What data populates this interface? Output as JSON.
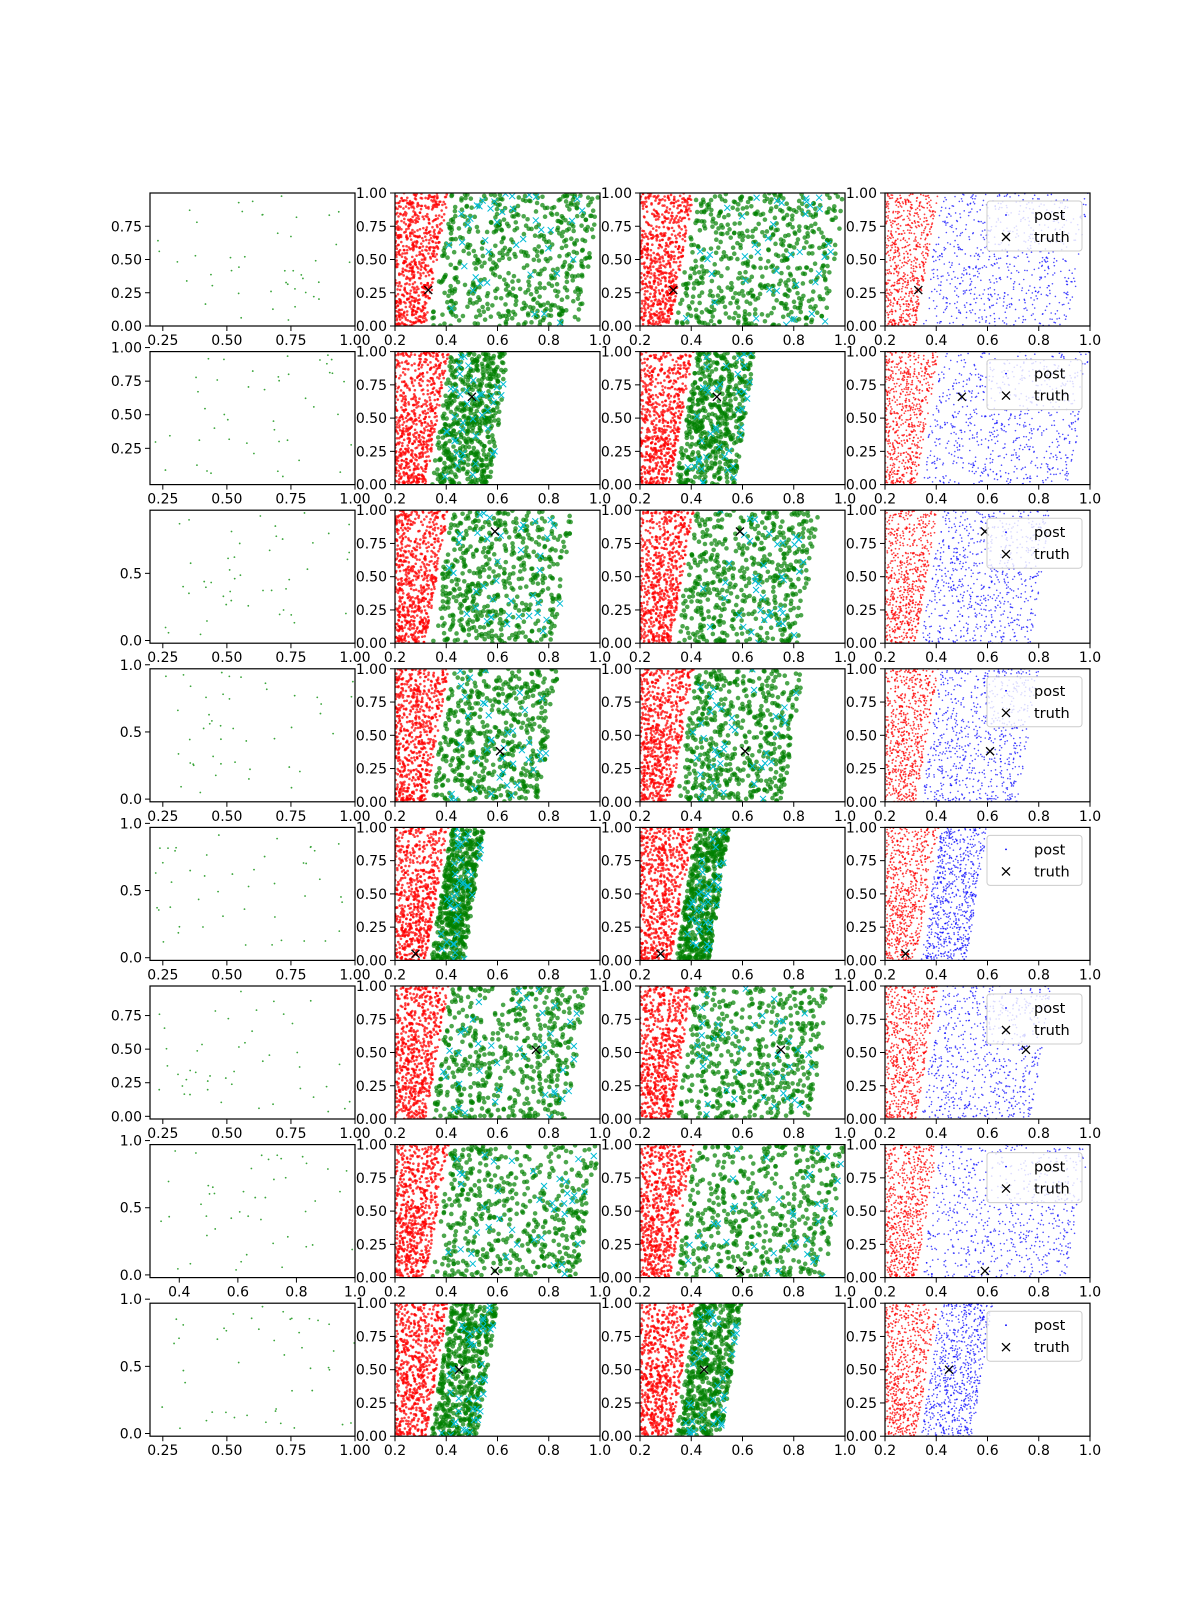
{
  "figure": {
    "rows": 8,
    "cols": 4,
    "colors": {
      "observed": "#3aa53a",
      "red_cloud": "#ff0000",
      "green_cloud": "#008000",
      "cyan_marks": "#00bcd4",
      "blue_posterior": "#0000ff",
      "truth_marker": "#000000"
    },
    "legend": {
      "post_label": "post",
      "truth_label": "truth"
    }
  },
  "chart_data": [
    {
      "type": "scatter",
      "row": 1,
      "panels": 4,
      "truth": [
        0.33,
        0.27
      ],
      "green_region": [
        0.4,
        1.0
      ],
      "blue_region": [
        0.45,
        1.0
      ],
      "col1_xlim": [
        0.2,
        1.0
      ],
      "col1_ylim": [
        0.0,
        1.0
      ],
      "col1_xticks": [
        "0.25",
        "0.50",
        "0.75",
        "1.00"
      ],
      "col1_yticks": [
        "0.00",
        "0.25",
        "0.50",
        "0.75"
      ],
      "xlim": [
        0.2,
        1.0
      ],
      "ylim": [
        0.0,
        1.0
      ],
      "xticks": [
        "0.2",
        "0.4",
        "0.6",
        "0.8",
        "1.0"
      ],
      "yticks": [
        "0.00",
        "0.25",
        "0.50",
        "0.75",
        "1.00"
      ],
      "legend": "upper right"
    },
    {
      "type": "scatter",
      "row": 2,
      "panels": 4,
      "truth": [
        0.5,
        0.66
      ],
      "green_region": [
        0.4,
        0.65
      ],
      "blue_region": [
        0.45,
        1.0
      ],
      "col1_xticks": [
        "0.25",
        "0.50",
        "0.75",
        "1.00"
      ],
      "col1_yticks": [
        "0.25",
        "0.50",
        "0.75",
        "1.00"
      ],
      "xticks": [
        "0.2",
        "0.4",
        "0.6",
        "0.8",
        "1.0"
      ],
      "yticks": [
        "0.00",
        "0.25",
        "0.50",
        "0.75",
        "1.00"
      ],
      "legend": "upper right"
    },
    {
      "type": "scatter",
      "row": 3,
      "panels": 4,
      "truth": [
        0.59,
        0.84
      ],
      "green_region": [
        0.4,
        0.9
      ],
      "blue_region": [
        0.45,
        0.85
      ],
      "col1_xticks": [
        "0.25",
        "0.50",
        "0.75",
        "1.00"
      ],
      "col1_yticks": [
        "0.0",
        "0.5"
      ],
      "xticks": [
        "0.2",
        "0.4",
        "0.6",
        "0.8",
        "1.0"
      ],
      "yticks": [
        "0.00",
        "0.25",
        "0.50",
        "0.75",
        "1.00"
      ],
      "legend": "upper right"
    },
    {
      "type": "scatter",
      "row": 4,
      "panels": 4,
      "truth": [
        0.61,
        0.38
      ],
      "green_region": [
        0.4,
        0.84
      ],
      "blue_region": [
        0.45,
        0.8
      ],
      "col1_xticks": [
        "0.25",
        "0.50",
        "0.75",
        "1.00"
      ],
      "col1_yticks": [
        "0.0",
        "0.5",
        "1.0"
      ],
      "xticks": [
        "0.2",
        "0.4",
        "0.6",
        "0.8",
        "1.0"
      ],
      "yticks": [
        "0.00",
        "0.25",
        "0.50",
        "0.75",
        "1.00"
      ],
      "legend": "upper right"
    },
    {
      "type": "scatter",
      "row": 5,
      "panels": 4,
      "truth": [
        0.28,
        0.05
      ],
      "green_region": [
        0.4,
        0.55
      ],
      "blue_region": [
        0.42,
        0.6
      ],
      "col1_xticks": [
        "0.25",
        "0.50",
        "0.75",
        "1.00"
      ],
      "col1_yticks": [
        "0.0",
        "0.5",
        "1.0"
      ],
      "xticks": [
        "0.2",
        "0.4",
        "0.6",
        "0.8",
        "1.0"
      ],
      "yticks": [
        "0.00",
        "0.25",
        "0.50",
        "0.75",
        "1.00"
      ],
      "legend": "upper right"
    },
    {
      "type": "scatter",
      "row": 6,
      "panels": 4,
      "truth": [
        0.75,
        0.52
      ],
      "green_region": [
        0.45,
        0.95
      ],
      "blue_region": [
        0.45,
        0.85
      ],
      "col1_xticks": [
        "0.25",
        "0.50",
        "0.75",
        "1.00"
      ],
      "col1_yticks": [
        "0.00",
        "0.25",
        "0.50",
        "0.75"
      ],
      "xticks": [
        "0.2",
        "0.4",
        "0.6",
        "0.8",
        "1.0"
      ],
      "yticks": [
        "0.00",
        "0.25",
        "0.50",
        "0.75",
        "1.00"
      ],
      "legend": "upper right"
    },
    {
      "type": "scatter",
      "row": 7,
      "panels": 4,
      "truth": [
        0.59,
        0.05
      ],
      "green_region": [
        0.45,
        1.0
      ],
      "blue_region": [
        0.45,
        1.0
      ],
      "col1_xlim": [
        0.3,
        1.0
      ],
      "col1_xticks": [
        "0.4",
        "0.6",
        "0.8",
        "1.0"
      ],
      "col1_yticks": [
        "0.0",
        "0.5",
        "1.0"
      ],
      "xticks": [
        "0.2",
        "0.4",
        "0.6",
        "0.8",
        "1.0"
      ],
      "yticks": [
        "0.00",
        "0.25",
        "0.50",
        "0.75",
        "1.00"
      ],
      "legend": "upper right"
    },
    {
      "type": "scatter",
      "row": 8,
      "panels": 4,
      "truth": [
        0.45,
        0.5
      ],
      "green_region": [
        0.4,
        0.6
      ],
      "blue_region": [
        0.42,
        0.62
      ],
      "col1_xticks": [
        "0.25",
        "0.50",
        "0.75",
        "1.00"
      ],
      "col1_yticks": [
        "0.0",
        "0.5",
        "1.0"
      ],
      "xticks": [
        "0.2",
        "0.4",
        "0.6",
        "0.8",
        "1.0"
      ],
      "yticks": [
        "0.00",
        "0.25",
        "0.50",
        "0.75",
        "1.00"
      ],
      "legend": "upper right"
    }
  ]
}
